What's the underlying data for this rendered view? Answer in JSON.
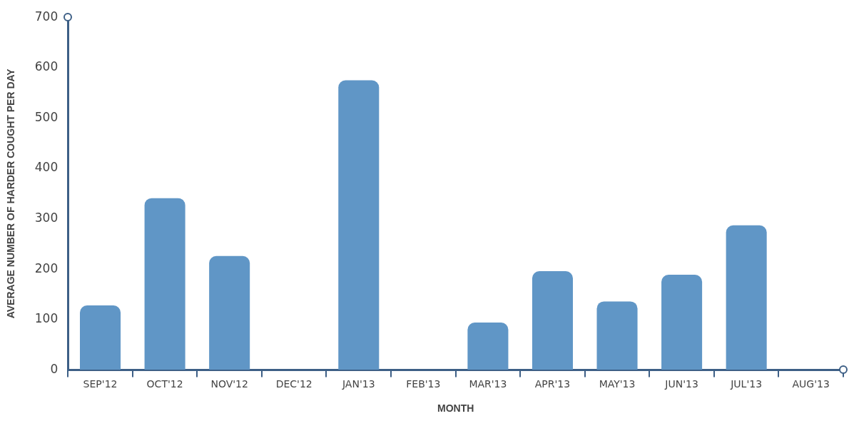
{
  "chart_data": {
    "type": "bar",
    "xlabel": "MONTH",
    "ylabel": "AVERAGE NUMBER OF HARDER COUGHT PER DAY",
    "categories": [
      "SEP'12",
      "OCT'12",
      "NOV'12",
      "DEC'12",
      "JAN'13",
      "FEB'13",
      "MAR'13",
      "APR'13",
      "MAY'13",
      "JUN'13",
      "JUL'13",
      "AUG'13"
    ],
    "values": [
      128,
      341,
      226,
      0,
      575,
      0,
      94,
      196,
      136,
      189,
      287,
      0
    ],
    "color": "#6096c6",
    "ylim": [
      0,
      700
    ],
    "yticks": [
      0,
      100,
      200,
      300,
      400,
      500,
      600,
      700
    ],
    "grid": false,
    "legend": false
  }
}
